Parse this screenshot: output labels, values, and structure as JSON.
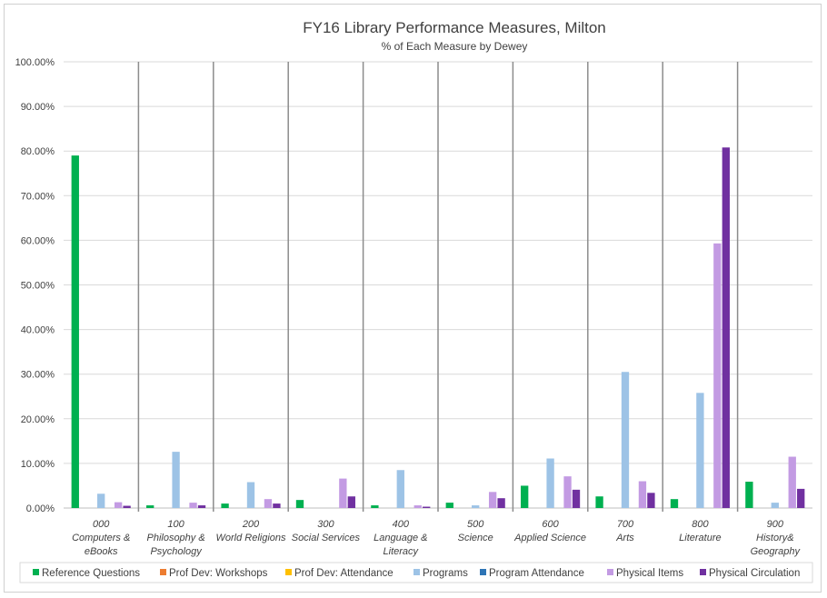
{
  "chart_data": {
    "type": "bar",
    "title": "FY16 Library Performance Measures, Milton",
    "subtitle": "% of Each Measure by Dewey",
    "ylim": [
      0,
      100
    ],
    "y_ticks": [
      "0.00%",
      "10.00%",
      "20.00%",
      "30.00%",
      "40.00%",
      "50.00%",
      "60.00%",
      "70.00%",
      "80.00%",
      "90.00%",
      "100.00%"
    ],
    "grid": true,
    "legend_position": "bottom",
    "categories": [
      [
        "000",
        "Computers &",
        "eBooks"
      ],
      [
        "100",
        "Philosophy &",
        "Psychology"
      ],
      [
        "200",
        "World Religions"
      ],
      [
        "300",
        "Social Services"
      ],
      [
        "400",
        "Language &",
        "Literacy"
      ],
      [
        "500",
        "Science"
      ],
      [
        "600",
        "Applied Science"
      ],
      [
        "700",
        "Arts"
      ],
      [
        "800",
        "Literature"
      ],
      [
        "900",
        "History&",
        "Geography"
      ]
    ],
    "series": [
      {
        "name": "Reference Questions",
        "color": "#00b050",
        "values": [
          79.0,
          0.6,
          1.0,
          1.8,
          0.6,
          1.2,
          5.0,
          2.6,
          2.0,
          5.9
        ]
      },
      {
        "name": "Prof Dev: Workshops",
        "color": "#ed7d31",
        "values": [
          0,
          0,
          0,
          0,
          0,
          0,
          0,
          0,
          0,
          0
        ]
      },
      {
        "name": "Prof Dev: Attendance",
        "color": "#ffc000",
        "values": [
          0,
          0,
          0,
          0,
          0,
          0,
          0,
          0,
          0,
          0
        ]
      },
      {
        "name": "Programs",
        "color": "#9dc3e6",
        "values": [
          3.2,
          12.6,
          5.8,
          0,
          8.5,
          0.6,
          11.1,
          30.5,
          25.8,
          1.2
        ]
      },
      {
        "name": "Program Attendance",
        "color": "#2e75b6",
        "values": [
          0,
          0,
          0,
          0,
          0,
          0,
          0,
          0,
          0,
          0
        ]
      },
      {
        "name": "Physical Items",
        "color": "#c39be3",
        "values": [
          1.3,
          1.2,
          2.0,
          6.6,
          0.6,
          3.6,
          7.1,
          6.0,
          59.3,
          11.5
        ]
      },
      {
        "name": "Physical Circulation",
        "color": "#7030a0",
        "values": [
          0.5,
          0.6,
          1.0,
          2.6,
          0.3,
          2.2,
          4.1,
          3.4,
          80.8,
          4.3
        ]
      }
    ]
  }
}
